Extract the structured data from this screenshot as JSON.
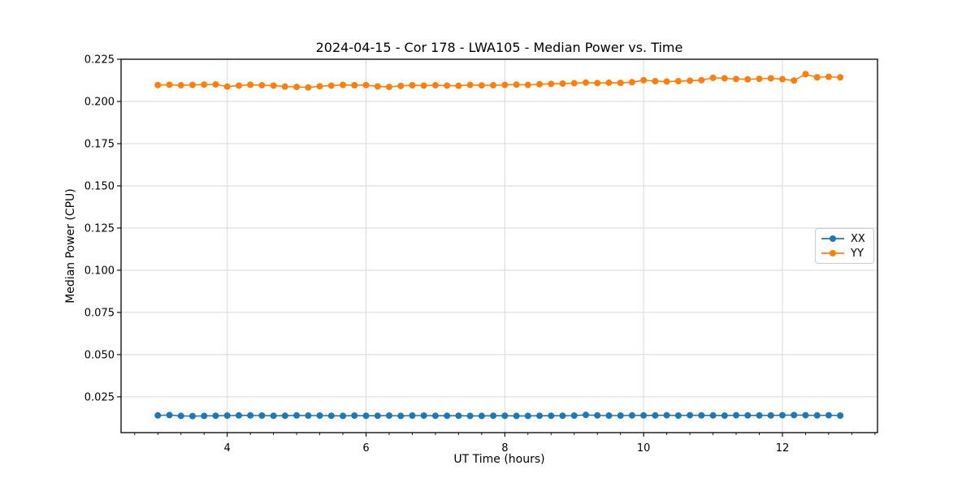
{
  "chart_data": {
    "type": "line",
    "title": "2024-04-15 - Cor 178 - LWA105 - Median Power vs. Time",
    "xlabel": "UT Time (hours)",
    "ylabel": "Median Power (CPU)",
    "xlim": [
      2.47,
      13.37
    ],
    "ylim": [
      0.0038,
      0.225
    ],
    "grid": true,
    "background": "#ffffff",
    "grid_color": "#d9d9d9",
    "x_major_ticks": [
      4,
      6,
      8,
      10,
      12
    ],
    "x_tick_labels": [
      "4",
      "6",
      "8",
      "10",
      "12"
    ],
    "x_minor_interval": 0.33333,
    "y_ticks": [
      0.025,
      0.05,
      0.075,
      0.1,
      0.125,
      0.15,
      0.175,
      0.2,
      0.225
    ],
    "y_tick_labels": [
      "0.025",
      "0.050",
      "0.075",
      "0.100",
      "0.125",
      "0.150",
      "0.175",
      "0.200",
      "0.225"
    ],
    "legend": {
      "position": "center right",
      "entries": [
        "XX",
        "YY"
      ]
    },
    "x": [
      3.0,
      3.167,
      3.333,
      3.5,
      3.667,
      3.833,
      4.0,
      4.167,
      4.333,
      4.5,
      4.667,
      4.833,
      5.0,
      5.167,
      5.333,
      5.5,
      5.667,
      5.833,
      6.0,
      6.167,
      6.333,
      6.5,
      6.667,
      6.833,
      7.0,
      7.167,
      7.333,
      7.5,
      7.667,
      7.833,
      8.0,
      8.167,
      8.333,
      8.5,
      8.667,
      8.833,
      9.0,
      9.167,
      9.333,
      9.5,
      9.667,
      9.833,
      10.0,
      10.167,
      10.333,
      10.5,
      10.667,
      10.833,
      11.0,
      11.167,
      11.333,
      11.5,
      11.667,
      11.833,
      12.0,
      12.167,
      12.333,
      12.5,
      12.667,
      12.833
    ],
    "series": [
      {
        "name": "XX",
        "color": "#1f77b4",
        "marker": "circle",
        "values": [
          0.014,
          0.0142,
          0.0137,
          0.0136,
          0.0137,
          0.0138,
          0.0139,
          0.014,
          0.014,
          0.0139,
          0.0138,
          0.0138,
          0.014,
          0.0139,
          0.0139,
          0.0138,
          0.0137,
          0.0139,
          0.0138,
          0.0138,
          0.0139,
          0.0137,
          0.0139,
          0.0139,
          0.0138,
          0.0138,
          0.0138,
          0.0137,
          0.0137,
          0.0138,
          0.0138,
          0.0137,
          0.0137,
          0.0138,
          0.0138,
          0.0138,
          0.0139,
          0.0143,
          0.014,
          0.0139,
          0.0139,
          0.014,
          0.014,
          0.014,
          0.0141,
          0.0139,
          0.0141,
          0.014,
          0.014,
          0.0139,
          0.0141,
          0.014,
          0.014,
          0.014,
          0.0141,
          0.0142,
          0.0141,
          0.014,
          0.0141,
          0.0139
        ]
      },
      {
        "name": "YY",
        "color": "#ff7f0e",
        "marker": "circle",
        "values": [
          0.2097,
          0.2099,
          0.2096,
          0.2098,
          0.21,
          0.2101,
          0.2088,
          0.2094,
          0.2099,
          0.2096,
          0.2094,
          0.2088,
          0.2086,
          0.2083,
          0.209,
          0.2094,
          0.2098,
          0.2096,
          0.2097,
          0.2089,
          0.2086,
          0.2092,
          0.2096,
          0.2094,
          0.2096,
          0.2094,
          0.2093,
          0.2098,
          0.2095,
          0.2096,
          0.2098,
          0.21,
          0.2098,
          0.2102,
          0.2104,
          0.2106,
          0.2108,
          0.2112,
          0.2109,
          0.2111,
          0.211,
          0.2114,
          0.2126,
          0.212,
          0.2118,
          0.212,
          0.2123,
          0.2126,
          0.214,
          0.2137,
          0.2133,
          0.2131,
          0.2134,
          0.2137,
          0.2132,
          0.2124,
          0.2162,
          0.2143,
          0.2146,
          0.2143
        ]
      }
    ]
  }
}
